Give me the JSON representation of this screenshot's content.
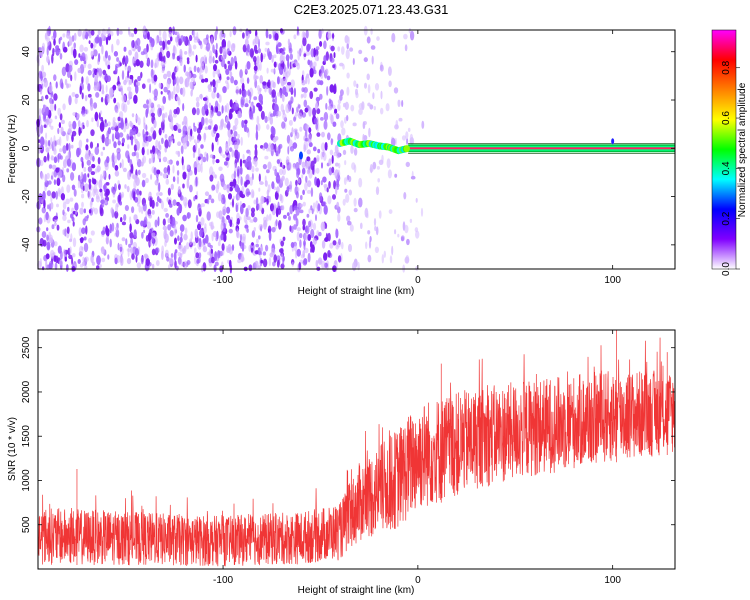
{
  "title": "C2E3.2025.071.23.43.G31",
  "chart_data": [
    {
      "type": "heatmap",
      "xlabel": "Height of straight line (km)",
      "ylabel": "Frequency (Hz)",
      "xlim": [
        -195,
        132
      ],
      "ylim": [
        -50,
        49
      ],
      "xticks": [
        -100,
        0,
        100
      ],
      "xtick_labels": [
        "-100",
        "0",
        "100"
      ],
      "yticks": [
        -40,
        -20,
        0,
        20,
        40
      ],
      "ytick_labels": [
        "-40",
        "-20",
        "0",
        "20",
        "40"
      ],
      "colorbar": {
        "label": "Normalized spectral amplitude",
        "range": [
          0,
          0.95
        ],
        "ticks": [
          0.0,
          0.2,
          0.4,
          0.6,
          0.8
        ],
        "tick_labels": [
          "0.0",
          "0.2",
          "0.4",
          "0.6",
          "0.8"
        ],
        "colors": [
          "#ffffff",
          "#8000ff",
          "#0000ff",
          "#00ffff",
          "#00ff00",
          "#ffff00",
          "#ff8000",
          "#ff0000",
          "#ff00ff"
        ]
      },
      "features": {
        "noise_region_x": [
          -195,
          -40
        ],
        "noise_amplitude": 0.1,
        "fading_region_x": [
          -40,
          10
        ],
        "tone_start_x": -40,
        "tone_x_end": 132,
        "tone_freq": [
          {
            "x": -40,
            "f": 2
          },
          {
            "x": -35,
            "f": 3
          },
          {
            "x": -30,
            "f": 1.5
          },
          {
            "x": -25,
            "f": 2
          },
          {
            "x": -20,
            "f": 1
          },
          {
            "x": -15,
            "f": 0.5
          },
          {
            "x": -10,
            "f": -1
          },
          {
            "x": -5,
            "f": 0
          },
          {
            "x": 132,
            "f": 0
          }
        ]
      }
    },
    {
      "type": "line",
      "xlabel": "Height of straight line (km)",
      "ylabel": "SNR (10 * v/v)",
      "xlim": [
        -195,
        132
      ],
      "ylim": [
        0,
        2700
      ],
      "xticks": [
        -100,
        0,
        100
      ],
      "xtick_labels": [
        "-100",
        "0",
        "100"
      ],
      "yticks": [
        500,
        1000,
        1500,
        2000,
        2500
      ],
      "ytick_labels": [
        "500",
        "1000",
        "1500",
        "2000",
        "2500"
      ],
      "color": "#f03535",
      "trend": [
        {
          "x": -195,
          "low": 50,
          "high": 700
        },
        {
          "x": -100,
          "low": 30,
          "high": 600
        },
        {
          "x": -60,
          "low": 50,
          "high": 650
        },
        {
          "x": -40,
          "low": 100,
          "high": 750
        },
        {
          "x": -30,
          "low": 300,
          "high": 1200
        },
        {
          "x": -10,
          "low": 450,
          "high": 1600
        },
        {
          "x": 0,
          "low": 650,
          "high": 1900
        },
        {
          "x": 30,
          "low": 900,
          "high": 2050
        },
        {
          "x": 60,
          "low": 1050,
          "high": 2150
        },
        {
          "x": 100,
          "low": 1200,
          "high": 2250
        },
        {
          "x": 132,
          "low": 1300,
          "high": 2250
        }
      ],
      "spikes": [
        {
          "x": -175,
          "y": 1130
        },
        {
          "x": 12,
          "y": 2320
        },
        {
          "x": 102,
          "y": 2700
        },
        {
          "x": 128,
          "y": 2450
        }
      ]
    }
  ]
}
